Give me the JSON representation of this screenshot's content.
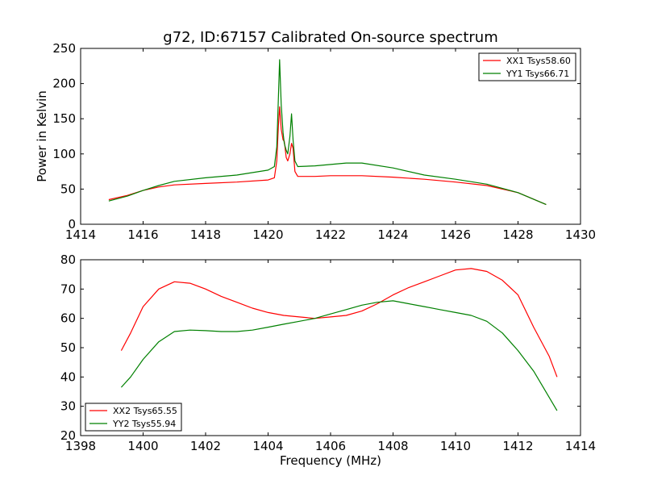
{
  "title": "g72, ID:67157 Calibrated On-source spectrum",
  "chart_data": [
    {
      "type": "line",
      "xlabel": "",
      "ylabel": "Power in Kelvin",
      "xlim": [
        1414,
        1430
      ],
      "ylim": [
        0,
        250
      ],
      "xticks": [
        1414,
        1416,
        1418,
        1420,
        1422,
        1424,
        1426,
        1428,
        1430
      ],
      "yticks": [
        0,
        50,
        100,
        150,
        200,
        250
      ],
      "grid": false,
      "legend_position": "top-right",
      "series": [
        {
          "name": "XX1 Tsys58.60",
          "color": "#ff0000",
          "points": [
            [
              1414.9,
              35
            ],
            [
              1415.5,
              41
            ],
            [
              1416,
              48
            ],
            [
              1416.5,
              53
            ],
            [
              1417,
              56
            ],
            [
              1418,
              58
            ],
            [
              1419,
              60
            ],
            [
              1420,
              63
            ],
            [
              1420.2,
              66
            ],
            [
              1420.28,
              90
            ],
            [
              1420.33,
              140
            ],
            [
              1420.37,
              167
            ],
            [
              1420.42,
              135
            ],
            [
              1420.48,
              120
            ],
            [
              1420.52,
              118
            ],
            [
              1420.58,
              95
            ],
            [
              1420.63,
              90
            ],
            [
              1420.7,
              100
            ],
            [
              1420.75,
              115
            ],
            [
              1420.8,
              108
            ],
            [
              1420.86,
              75
            ],
            [
              1420.95,
              68
            ],
            [
              1421.5,
              68
            ],
            [
              1422,
              69
            ],
            [
              1423,
              69
            ],
            [
              1424,
              67
            ],
            [
              1425,
              64
            ],
            [
              1426,
              60
            ],
            [
              1427,
              55
            ],
            [
              1428,
              45
            ],
            [
              1428.9,
              28
            ]
          ]
        },
        {
          "name": "YY1 Tsys66.71",
          "color": "#008000",
          "points": [
            [
              1414.9,
              33
            ],
            [
              1415.5,
              40
            ],
            [
              1416,
              48
            ],
            [
              1416.5,
              55
            ],
            [
              1417,
              61
            ],
            [
              1418,
              66
            ],
            [
              1419,
              70
            ],
            [
              1420,
              77
            ],
            [
              1420.2,
              82
            ],
            [
              1420.28,
              110
            ],
            [
              1420.33,
              180
            ],
            [
              1420.37,
              234
            ],
            [
              1420.42,
              170
            ],
            [
              1420.48,
              130
            ],
            [
              1420.52,
              115
            ],
            [
              1420.58,
              105
            ],
            [
              1420.63,
              100
            ],
            [
              1420.7,
              125
            ],
            [
              1420.75,
              157
            ],
            [
              1420.8,
              120
            ],
            [
              1420.86,
              90
            ],
            [
              1420.95,
              82
            ],
            [
              1421.5,
              83
            ],
            [
              1422,
              85
            ],
            [
              1422.5,
              87
            ],
            [
              1423,
              87
            ],
            [
              1424,
              80
            ],
            [
              1425,
              70
            ],
            [
              1426,
              64
            ],
            [
              1427,
              57
            ],
            [
              1428,
              45
            ],
            [
              1428.9,
              28
            ]
          ]
        }
      ]
    },
    {
      "type": "line",
      "xlabel": "Frequency (MHz)",
      "ylabel": "",
      "xlim": [
        1398,
        1414
      ],
      "ylim": [
        20,
        80
      ],
      "xticks": [
        1398,
        1400,
        1402,
        1404,
        1406,
        1408,
        1410,
        1412,
        1414
      ],
      "yticks": [
        20,
        30,
        40,
        50,
        60,
        70,
        80
      ],
      "grid": false,
      "legend_position": "bottom-left",
      "series": [
        {
          "name": "XX2 Tsys65.55",
          "color": "#ff0000",
          "points": [
            [
              1399.3,
              49
            ],
            [
              1399.6,
              55
            ],
            [
              1400,
              64
            ],
            [
              1400.5,
              70
            ],
            [
              1401,
              72.5
            ],
            [
              1401.5,
              72
            ],
            [
              1402,
              70
            ],
            [
              1402.5,
              67.5
            ],
            [
              1403,
              65.5
            ],
            [
              1403.5,
              63.5
            ],
            [
              1404,
              62
            ],
            [
              1404.5,
              61
            ],
            [
              1405,
              60.5
            ],
            [
              1405.5,
              60
            ],
            [
              1406,
              60.5
            ],
            [
              1406.5,
              61
            ],
            [
              1407,
              62.5
            ],
            [
              1407.5,
              65
            ],
            [
              1408,
              68
            ],
            [
              1408.5,
              70.5
            ],
            [
              1409,
              72.5
            ],
            [
              1409.5,
              74.5
            ],
            [
              1410,
              76.5
            ],
            [
              1410.5,
              77
            ],
            [
              1411,
              76
            ],
            [
              1411.5,
              73
            ],
            [
              1412,
              68
            ],
            [
              1412.5,
              57
            ],
            [
              1413,
              47
            ],
            [
              1413.25,
              40
            ]
          ]
        },
        {
          "name": "YY2 Tsys55.94",
          "color": "#008000",
          "points": [
            [
              1399.3,
              36.5
            ],
            [
              1399.6,
              40
            ],
            [
              1400,
              46
            ],
            [
              1400.5,
              52
            ],
            [
              1401,
              55.5
            ],
            [
              1401.5,
              56
            ],
            [
              1402,
              55.8
            ],
            [
              1402.5,
              55.5
            ],
            [
              1403,
              55.5
            ],
            [
              1403.5,
              56
            ],
            [
              1404,
              57
            ],
            [
              1404.5,
              58
            ],
            [
              1405,
              59
            ],
            [
              1405.5,
              60
            ],
            [
              1406,
              61.5
            ],
            [
              1406.5,
              63
            ],
            [
              1407,
              64.5
            ],
            [
              1407.5,
              65.5
            ],
            [
              1408,
              66
            ],
            [
              1408.5,
              65
            ],
            [
              1409,
              64
            ],
            [
              1409.5,
              63
            ],
            [
              1410,
              62
            ],
            [
              1410.5,
              61
            ],
            [
              1411,
              59
            ],
            [
              1411.5,
              55
            ],
            [
              1412,
              49
            ],
            [
              1412.5,
              42
            ],
            [
              1413,
              33
            ],
            [
              1413.25,
              28.5
            ]
          ]
        }
      ]
    }
  ]
}
